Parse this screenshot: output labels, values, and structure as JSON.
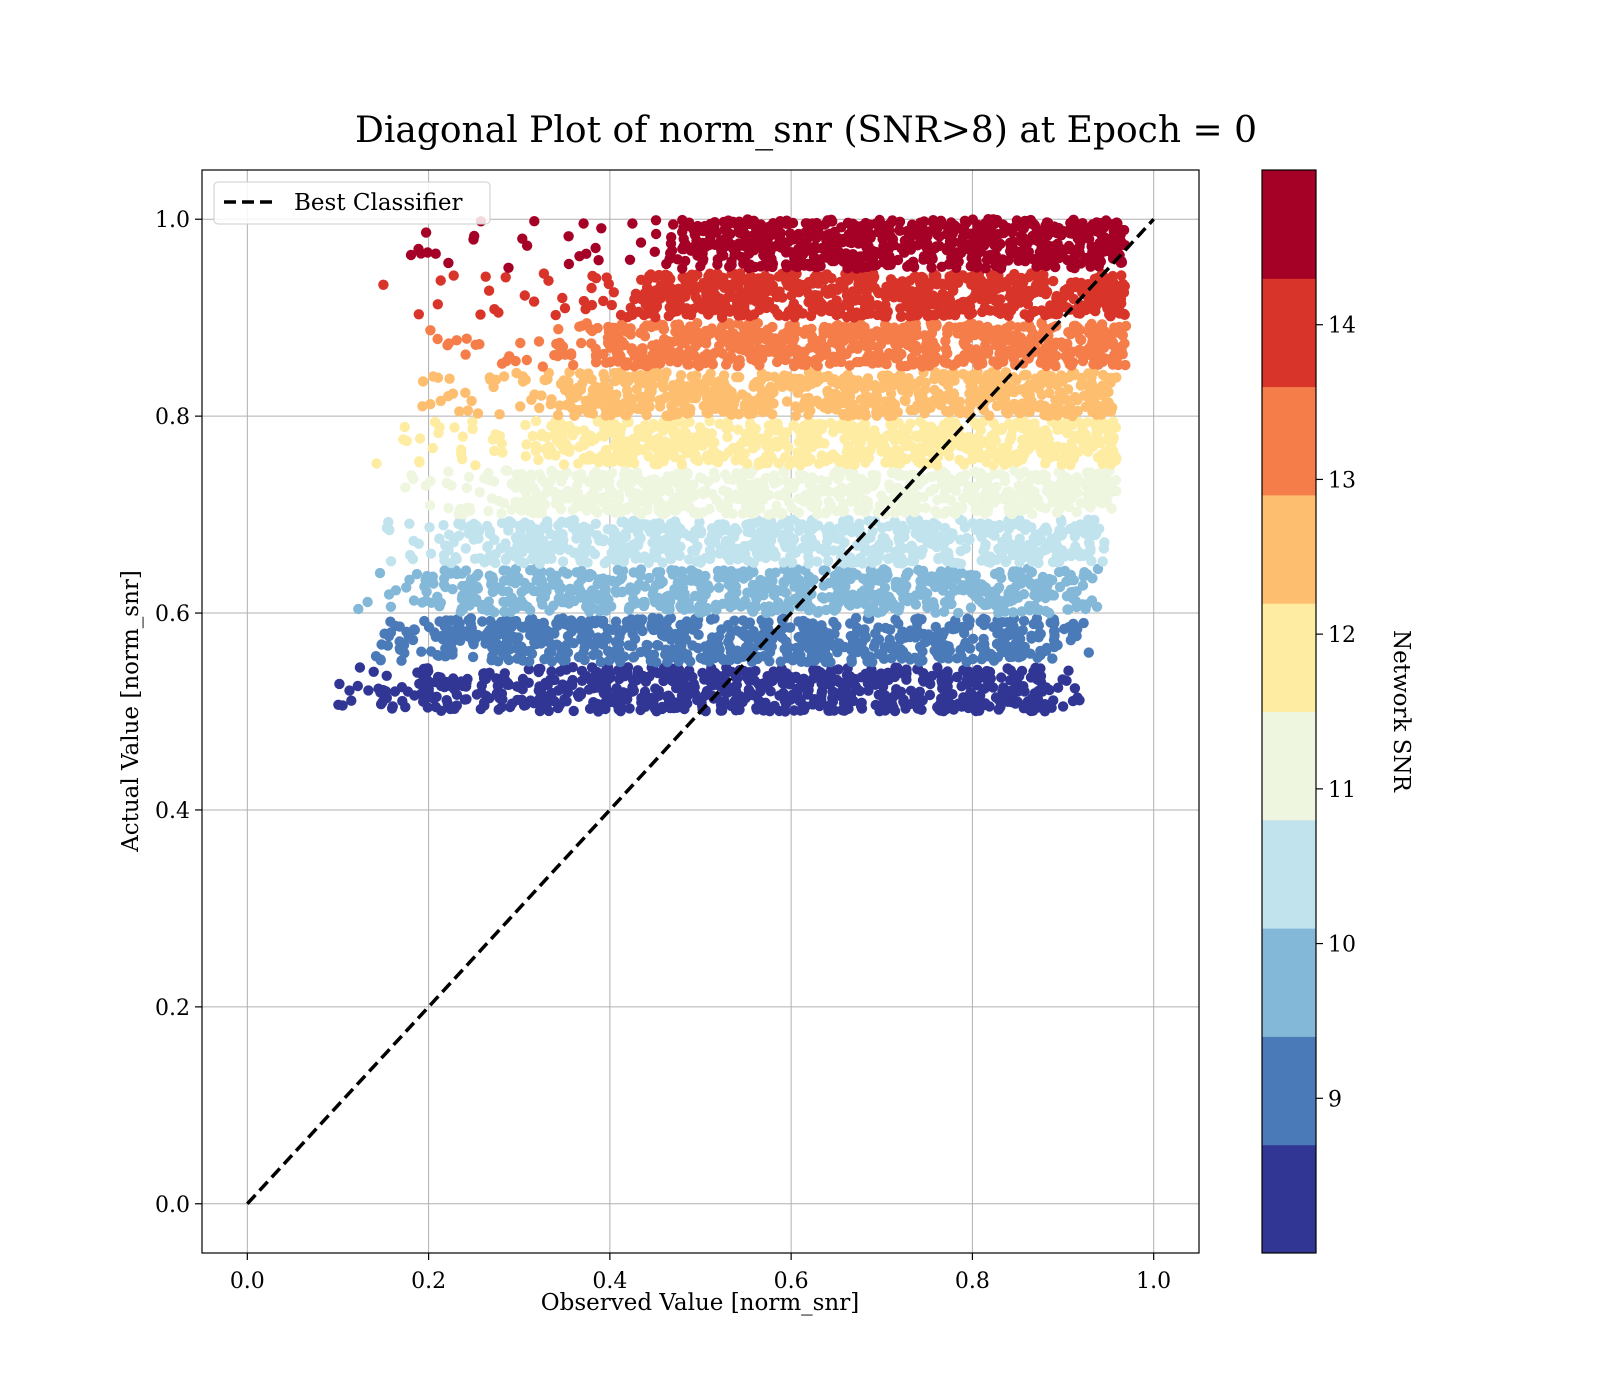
{
  "chart_data": {
    "type": "scatter",
    "title": "Diagonal Plot of norm_snr (SNR>8) at Epoch = 0",
    "xlabel": "Observed Value [norm_snr]",
    "ylabel": "Actual Value [norm_snr]",
    "xlim": [
      -0.05,
      1.05
    ],
    "ylim": [
      -0.05,
      1.05
    ],
    "x_ticks": [
      "0.0",
      "0.2",
      "0.4",
      "0.6",
      "0.8",
      "1.0"
    ],
    "y_ticks": [
      "0.0",
      "0.2",
      "0.4",
      "0.6",
      "0.8",
      "1.0"
    ],
    "grid": true,
    "legend": {
      "placement": "upper-left",
      "entries": [
        "Best Classifier"
      ]
    },
    "reference_line": {
      "label": "Best Classifier",
      "style": "dashed",
      "color": "#000000",
      "x": [
        0.0,
        1.0
      ],
      "y": [
        0.0,
        1.0
      ]
    },
    "colorbar": {
      "label": "Network SNR",
      "tick_labels": [
        "9",
        "10",
        "11",
        "12",
        "13",
        "14"
      ],
      "tick_values": [
        9,
        10,
        11,
        12,
        13,
        14
      ],
      "range": [
        8.0,
        15.0
      ],
      "levels": [
        {
          "snr_range": [
            8.0,
            8.7
          ],
          "color": "#313695"
        },
        {
          "snr_range": [
            8.7,
            9.4
          ],
          "color": "#4a7ab7"
        },
        {
          "snr_range": [
            9.4,
            10.1
          ],
          "color": "#84b8d8"
        },
        {
          "snr_range": [
            10.1,
            10.8
          ],
          "color": "#c0e3ee"
        },
        {
          "snr_range": [
            10.8,
            11.5
          ],
          "color": "#eef6e0"
        },
        {
          "snr_range": [
            11.5,
            12.2
          ],
          "color": "#feeca2"
        },
        {
          "snr_range": [
            12.2,
            12.9
          ],
          "color": "#fdbe70"
        },
        {
          "snr_range": [
            12.9,
            13.6
          ],
          "color": "#f57d4a"
        },
        {
          "snr_range": [
            13.6,
            14.3
          ],
          "color": "#d93429"
        },
        {
          "snr_range": [
            14.3,
            15.0
          ],
          "color": "#a50026"
        }
      ]
    },
    "series": [
      {
        "color": "#313695",
        "actual_range": [
          0.5,
          0.545
        ],
        "observed_core": [
          0.2,
          0.88
        ],
        "observed_scatter": [
          0.1,
          0.92
        ]
      },
      {
        "color": "#4a7ab7",
        "actual_range": [
          0.55,
          0.595
        ],
        "observed_core": [
          0.22,
          0.89
        ],
        "observed_scatter": [
          0.13,
          0.94
        ]
      },
      {
        "color": "#84b8d8",
        "actual_range": [
          0.6,
          0.645
        ],
        "observed_core": [
          0.24,
          0.91
        ],
        "observed_scatter": [
          0.12,
          0.94
        ]
      },
      {
        "color": "#c0e3ee",
        "actual_range": [
          0.65,
          0.695
        ],
        "observed_core": [
          0.27,
          0.93
        ],
        "observed_scatter": [
          0.15,
          0.95
        ]
      },
      {
        "color": "#eef6e0",
        "actual_range": [
          0.7,
          0.745
        ],
        "observed_core": [
          0.3,
          0.94
        ],
        "observed_scatter": [
          0.17,
          0.96
        ]
      },
      {
        "color": "#feeca2",
        "actual_range": [
          0.75,
          0.795
        ],
        "observed_core": [
          0.33,
          0.95
        ],
        "observed_scatter": [
          0.14,
          0.96
        ]
      },
      {
        "color": "#fdbe70",
        "actual_range": [
          0.8,
          0.845
        ],
        "observed_core": [
          0.36,
          0.95
        ],
        "observed_scatter": [
          0.19,
          0.96
        ]
      },
      {
        "color": "#f57d4a",
        "actual_range": [
          0.85,
          0.895
        ],
        "observed_core": [
          0.4,
          0.96
        ],
        "observed_scatter": [
          0.19,
          0.97
        ]
      },
      {
        "color": "#d93429",
        "actual_range": [
          0.9,
          0.945
        ],
        "observed_core": [
          0.44,
          0.96
        ],
        "observed_scatter": [
          0.15,
          0.97
        ]
      },
      {
        "color": "#a50026",
        "actual_range": [
          0.95,
          1.0
        ],
        "observed_core": [
          0.48,
          0.96
        ],
        "observed_scatter": [
          0.14,
          0.97
        ]
      }
    ]
  }
}
